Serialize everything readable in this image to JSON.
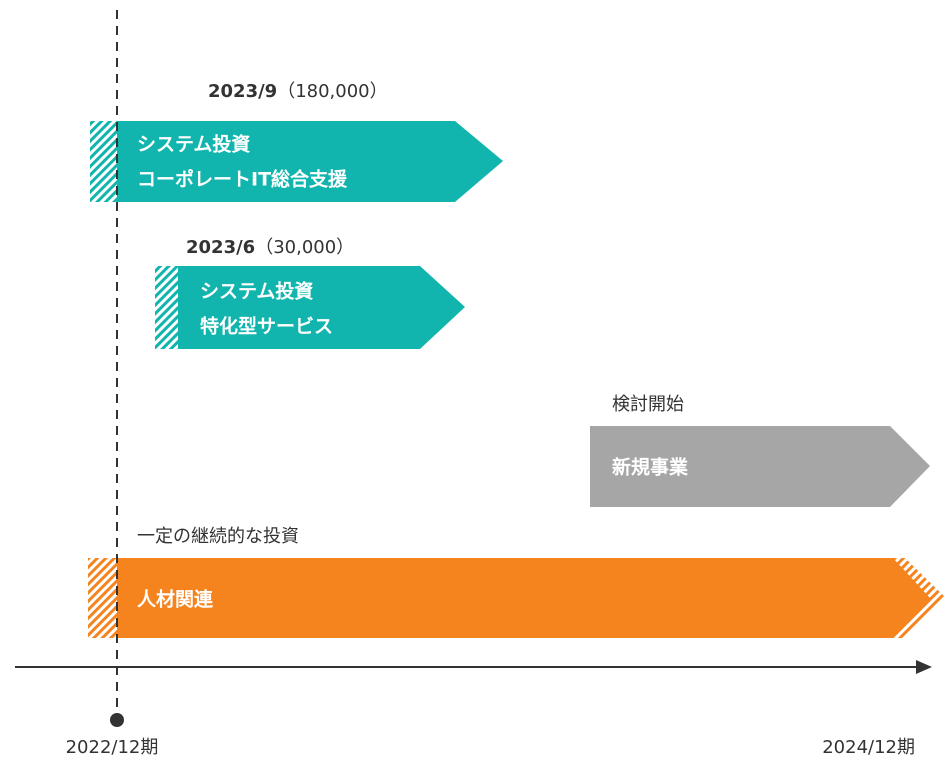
{
  "bars": [
    {
      "date": "2023/9",
      "amount": "（180,000）",
      "lines": [
        "システム投資",
        "コーポレートIT総合支援"
      ]
    },
    {
      "date": "2023/6",
      "amount": "（30,000）",
      "lines": [
        "システム投資",
        "特化型サービス"
      ]
    },
    {
      "note": "検討開始",
      "lines": [
        "新規事業"
      ]
    },
    {
      "note": "一定の継続的な投資",
      "lines": [
        "人材関連"
      ]
    }
  ],
  "axis": {
    "start": "2022/12期",
    "end": "2024/12期"
  }
}
